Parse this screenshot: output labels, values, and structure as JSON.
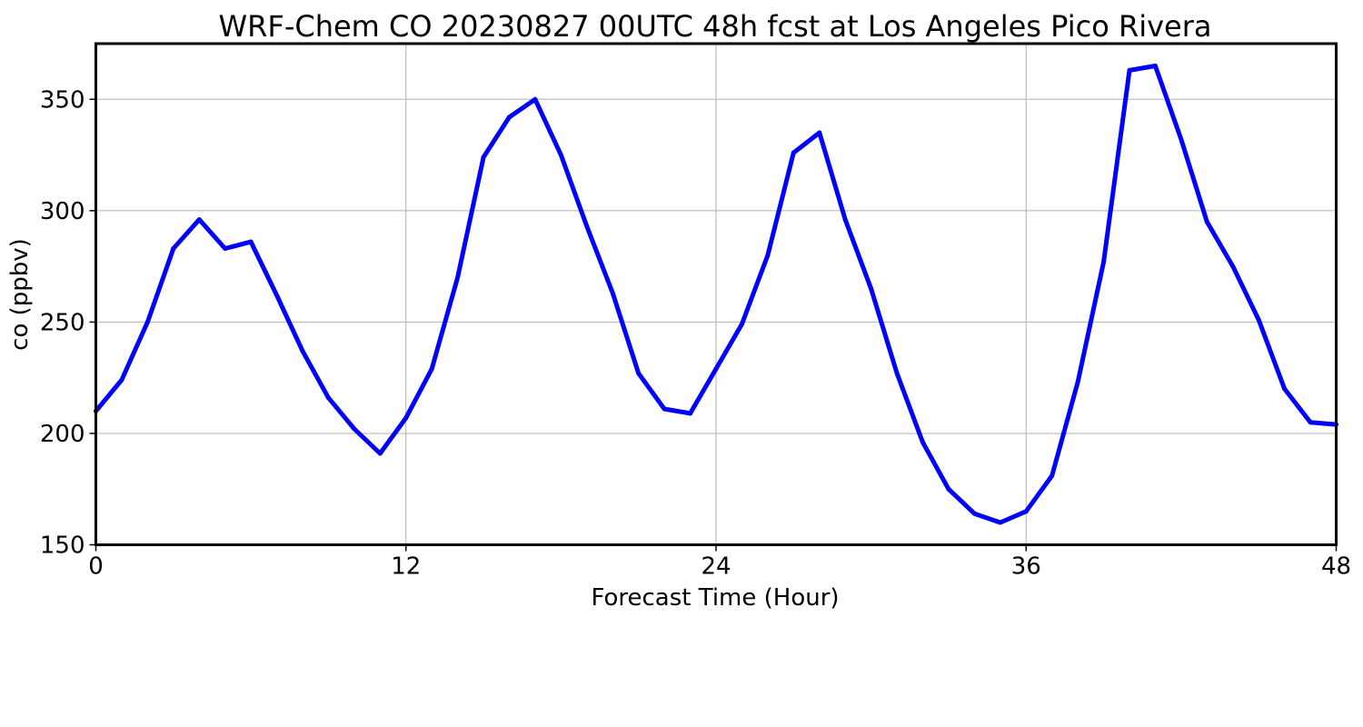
{
  "chart_data": {
    "type": "line",
    "title": "WRF-Chem CO  20230827 00UTC 48h fcst at Los Angeles Pico Rivera",
    "xlabel": "Forecast Time (Hour)",
    "ylabel": "co  (ppbv)",
    "xlim": [
      0,
      48
    ],
    "ylim": [
      150,
      375
    ],
    "xticks": [
      0,
      12,
      24,
      36,
      48
    ],
    "yticks": [
      150,
      200,
      250,
      300,
      350
    ],
    "grid": true,
    "series": [
      {
        "color": "#0000ff",
        "x": [
          0,
          1,
          2,
          3,
          4,
          5,
          6,
          7,
          8,
          9,
          10,
          11,
          12,
          13,
          14,
          15,
          16,
          17,
          18,
          19,
          20,
          21,
          22,
          23,
          24,
          25,
          26,
          27,
          28,
          29,
          30,
          31,
          32,
          33,
          34,
          35,
          36,
          37,
          38,
          39,
          40,
          41,
          42,
          43,
          44,
          45,
          46,
          47,
          48
        ],
        "y": [
          210,
          224,
          250,
          283,
          296,
          283,
          286,
          262,
          237,
          216,
          202,
          191,
          207,
          229,
          270,
          324,
          342,
          350,
          325,
          293,
          263,
          227,
          211,
          209,
          229,
          249,
          280,
          326,
          335,
          296,
          265,
          227,
          196,
          175,
          164,
          160,
          165,
          181,
          223,
          277,
          363,
          365,
          332,
          295,
          275,
          251,
          220,
          205,
          204
        ]
      }
    ]
  }
}
